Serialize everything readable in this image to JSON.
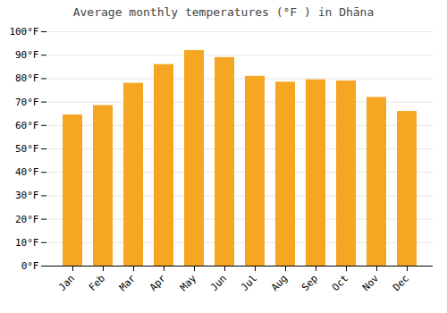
{
  "chart_data": {
    "type": "bar",
    "title": "Average monthly temperatures (°F ) in Dhāna",
    "categories": [
      "Jan",
      "Feb",
      "Mar",
      "Apr",
      "May",
      "Jun",
      "Jul",
      "Aug",
      "Sep",
      "Oct",
      "Nov",
      "Dec"
    ],
    "values": [
      64.5,
      68.5,
      78,
      86,
      92,
      89,
      81,
      78.5,
      79.5,
      79,
      72,
      66
    ],
    "color": "#F5A623",
    "ylim": [
      0,
      100
    ],
    "yticks": [
      {
        "value": 0,
        "label": "0°F"
      },
      {
        "value": 10,
        "label": "10°F"
      },
      {
        "value": 20,
        "label": "20°F"
      },
      {
        "value": 30,
        "label": "30°F"
      },
      {
        "value": 40,
        "label": "40°F"
      },
      {
        "value": 50,
        "label": "50°F"
      },
      {
        "value": 60,
        "label": "60°F"
      },
      {
        "value": 70,
        "label": "70°F"
      },
      {
        "value": 80,
        "label": "80°F"
      },
      {
        "value": 90,
        "label": "90°F"
      },
      {
        "value": 100,
        "label": "100°F"
      }
    ],
    "grid": true
  }
}
